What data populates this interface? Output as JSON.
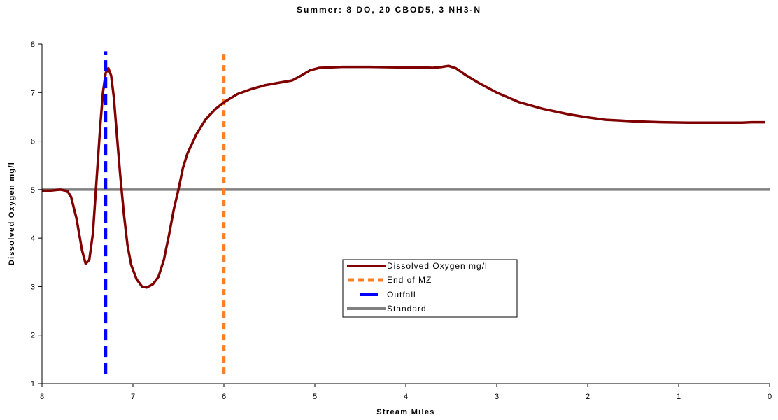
{
  "chart_data": {
    "type": "line",
    "title": "Summer: 8 DO, 20 CBOD5, 3 NH3-N",
    "xlabel": "Stream Miles",
    "ylabel": "Dissolved Oxygen mg/l",
    "xlim": [
      8,
      0
    ],
    "ylim": [
      1,
      8
    ],
    "x_ticks": [
      "8",
      "7",
      "6",
      "5",
      "4",
      "3",
      "2",
      "1",
      "0"
    ],
    "y_ticks": [
      "1",
      "2",
      "3",
      "4",
      "5",
      "6",
      "7",
      "8"
    ],
    "x_reversed": true,
    "grid": false,
    "legend_position": "center-right",
    "series": [
      {
        "name": "Dissolved Oxygen mg/l",
        "color": "#800000",
        "style": "solid",
        "points": [
          [
            8.0,
            4.98
          ],
          [
            7.9,
            4.98
          ],
          [
            7.8,
            5.0
          ],
          [
            7.72,
            4.97
          ],
          [
            7.68,
            4.85
          ],
          [
            7.62,
            4.4
          ],
          [
            7.56,
            3.75
          ],
          [
            7.52,
            3.47
          ],
          [
            7.48,
            3.55
          ],
          [
            7.44,
            4.1
          ],
          [
            7.4,
            5.2
          ],
          [
            7.36,
            6.3
          ],
          [
            7.33,
            7.0
          ],
          [
            7.3,
            7.4
          ],
          [
            7.27,
            7.5
          ],
          [
            7.24,
            7.35
          ],
          [
            7.21,
            6.9
          ],
          [
            7.18,
            6.2
          ],
          [
            7.14,
            5.3
          ],
          [
            7.1,
            4.5
          ],
          [
            7.06,
            3.85
          ],
          [
            7.02,
            3.45
          ],
          [
            6.96,
            3.15
          ],
          [
            6.9,
            3.0
          ],
          [
            6.85,
            2.98
          ],
          [
            6.78,
            3.05
          ],
          [
            6.72,
            3.2
          ],
          [
            6.66,
            3.55
          ],
          [
            6.6,
            4.1
          ],
          [
            6.55,
            4.6
          ],
          [
            6.5,
            5.0
          ],
          [
            6.45,
            5.45
          ],
          [
            6.4,
            5.75
          ],
          [
            6.3,
            6.15
          ],
          [
            6.2,
            6.45
          ],
          [
            6.1,
            6.65
          ],
          [
            6.0,
            6.8
          ],
          [
            5.85,
            6.97
          ],
          [
            5.7,
            7.07
          ],
          [
            5.55,
            7.15
          ],
          [
            5.4,
            7.2
          ],
          [
            5.25,
            7.25
          ],
          [
            5.15,
            7.35
          ],
          [
            5.05,
            7.46
          ],
          [
            4.95,
            7.51
          ],
          [
            4.7,
            7.53
          ],
          [
            4.4,
            7.53
          ],
          [
            4.1,
            7.52
          ],
          [
            3.85,
            7.52
          ],
          [
            3.7,
            7.51
          ],
          [
            3.6,
            7.53
          ],
          [
            3.53,
            7.55
          ],
          [
            3.45,
            7.5
          ],
          [
            3.35,
            7.37
          ],
          [
            3.2,
            7.2
          ],
          [
            3.0,
            7.0
          ],
          [
            2.75,
            6.8
          ],
          [
            2.5,
            6.67
          ],
          [
            2.2,
            6.55
          ],
          [
            2.0,
            6.49
          ],
          [
            1.8,
            6.44
          ],
          [
            1.5,
            6.41
          ],
          [
            1.2,
            6.39
          ],
          [
            0.9,
            6.38
          ],
          [
            0.5,
            6.38
          ],
          [
            0.3,
            6.38
          ],
          [
            0.2,
            6.39
          ],
          [
            0.05,
            6.39
          ]
        ]
      },
      {
        "name": "End of MZ",
        "color": "#ff7f27",
        "style": "dotted",
        "points": [
          [
            6.0,
            1.2
          ],
          [
            6.0,
            7.85
          ]
        ]
      },
      {
        "name": "Outfall",
        "color": "#0000ff",
        "style": "dashed",
        "points": [
          [
            7.3,
            1.2
          ],
          [
            7.3,
            7.85
          ]
        ]
      },
      {
        "name": "Standard",
        "color": "#808080",
        "style": "solid",
        "points": [
          [
            8.0,
            5.0
          ],
          [
            0.0,
            5.0
          ]
        ]
      }
    ]
  }
}
